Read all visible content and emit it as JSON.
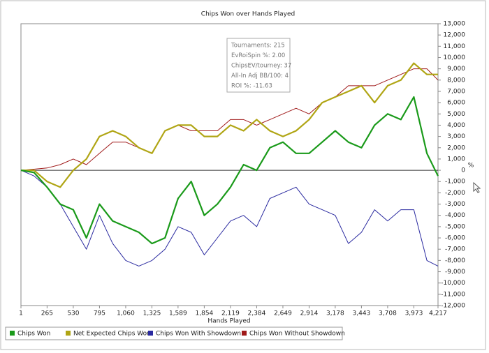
{
  "chart_data": {
    "type": "line",
    "title": "Chips Won over Hands Played",
    "x_label": "Hands Played",
    "y_label": "%",
    "x": [
      1,
      133,
      265,
      398,
      530,
      663,
      795,
      928,
      1060,
      1193,
      1325,
      1457,
      1589,
      1722,
      1854,
      1987,
      2119,
      2252,
      2384,
      2517,
      2649,
      2782,
      2914,
      3046,
      3178,
      3311,
      3443,
      3576,
      3708,
      3841,
      3973,
      4105,
      4217
    ],
    "series": [
      {
        "name": "Chips Won",
        "color": "#1a9a1a",
        "width": 2.2,
        "values": [
          0,
          -200,
          -1500,
          -3000,
          -3500,
          -6000,
          -3000,
          -4500,
          -5000,
          -5500,
          -6500,
          -6000,
          -2500,
          -1000,
          -4000,
          -3000,
          -1500,
          500,
          0,
          2000,
          2500,
          1500,
          1500,
          2500,
          3500,
          2500,
          2000,
          4000,
          5000,
          4500,
          6500,
          1500,
          -500
        ]
      },
      {
        "name": "Net Expected Chips Won",
        "color": "#b0a514",
        "width": 2.2,
        "values": [
          0,
          0,
          -1000,
          -1500,
          0,
          1000,
          3000,
          3500,
          3000,
          2000,
          1500,
          3500,
          4000,
          4000,
          3000,
          3000,
          4000,
          3500,
          4500,
          3500,
          3000,
          3500,
          4500,
          6000,
          6500,
          7000,
          7500,
          6000,
          7500,
          8000,
          9500,
          8500,
          8500
        ]
      },
      {
        "name": "Chips Won With Showdown",
        "color": "#2a2aa0",
        "width": 1,
        "values": [
          0,
          -500,
          -1500,
          -3000,
          -5000,
          -7000,
          -4000,
          -6500,
          -8000,
          -8500,
          -8000,
          -7000,
          -5000,
          -5500,
          -7500,
          -6000,
          -4500,
          -4000,
          -5000,
          -2500,
          -2000,
          -1500,
          -3000,
          -3500,
          -4000,
          -6500,
          -5500,
          -3500,
          -4500,
          -3500,
          -3500,
          -8000,
          -8500
        ]
      },
      {
        "name": "Chips Won Without Showdown",
        "color": "#a01a1a",
        "width": 1,
        "values": [
          0,
          100,
          200,
          500,
          1000,
          500,
          1500,
          2500,
          2500,
          2000,
          1500,
          3500,
          4000,
          3500,
          3500,
          3500,
          4500,
          4500,
          4000,
          4500,
          5000,
          5500,
          5000,
          6000,
          6500,
          7500,
          7500,
          7500,
          8000,
          8500,
          9000,
          9000,
          8000
        ]
      }
    ],
    "xlim": [
      1,
      4217
    ],
    "xticks": [
      1,
      {
        "value": 265,
        "label": "265"
      },
      {
        "value": 530,
        "label": "530"
      },
      {
        "value": 795,
        "label": "795"
      },
      {
        "value": 1060,
        "label": "1,060"
      },
      {
        "value": 1325,
        "label": "1,325"
      },
      {
        "value": 1589,
        "label": "1,589"
      },
      {
        "value": 1854,
        "label": "1,854"
      },
      {
        "value": 2119,
        "label": "2,119"
      },
      {
        "value": 2384,
        "label": "2,384"
      },
      {
        "value": 2649,
        "label": "2,649"
      },
      {
        "value": 2914,
        "label": "2,914"
      },
      {
        "value": 3178,
        "label": "3,178"
      },
      {
        "value": 3443,
        "label": "3,443"
      },
      {
        "value": 3708,
        "label": "3,708"
      },
      {
        "value": 3973,
        "label": "3,973"
      },
      {
        "value": 4217,
        "label": "4,217"
      }
    ],
    "ylim": [
      -12000,
      13000
    ],
    "yticks": [
      {
        "value": -12000,
        "label": "-12,000"
      },
      {
        "value": -11000,
        "label": "-11,000"
      },
      {
        "value": -10000,
        "label": "-10,000"
      },
      {
        "value": -9000,
        "label": "-9,000"
      },
      {
        "value": -8000,
        "label": "-8,000"
      },
      {
        "value": -7000,
        "label": "-7,000"
      },
      {
        "value": -6000,
        "label": "-6,000"
      },
      {
        "value": -5000,
        "label": "-5,000"
      },
      {
        "value": -4000,
        "label": "-4,000"
      },
      {
        "value": -3000,
        "label": "-3,000"
      },
      {
        "value": -2000,
        "label": "-2,000"
      },
      {
        "value": -1000,
        "label": "-1,000"
      },
      0,
      {
        "value": 1000,
        "label": "1,000"
      },
      {
        "value": 2000,
        "label": "2,000"
      },
      {
        "value": 3000,
        "label": "3,000"
      },
      {
        "value": 4000,
        "label": "4,000"
      },
      {
        "value": 5000,
        "label": "5,000"
      },
      {
        "value": 6000,
        "label": "6,000"
      },
      {
        "value": 7000,
        "label": "7,000"
      },
      {
        "value": 8000,
        "label": "8,000"
      },
      {
        "value": 9000,
        "label": "9,000"
      },
      {
        "value": 10000,
        "label": "10,000"
      },
      {
        "value": 11000,
        "label": "11,000"
      },
      {
        "value": 12000,
        "label": "12,000"
      },
      {
        "value": 13000,
        "label": "13,000"
      }
    ],
    "y_axis_side": "right",
    "grid": false,
    "legend": "bottom-left",
    "tooltip": [
      "Tournaments: 215",
      "EvRoiSpin %: 2.00",
      "ChipsEV/tourney: 37",
      "All-In Adj BB/100: 4",
      "ROI %: -11.63"
    ]
  }
}
